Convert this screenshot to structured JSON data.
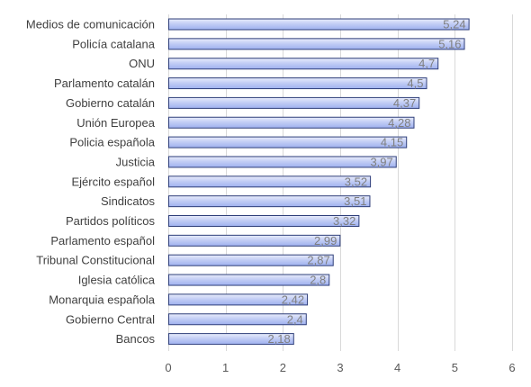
{
  "chart_data": {
    "type": "bar",
    "orientation": "horizontal",
    "categories": [
      "Medios de comunicación",
      "Policía catalana",
      "ONU",
      "Parlamento catalán",
      "Gobierno catalán",
      "Unión Europea",
      "Policia española",
      "Justicia",
      "Ejército español",
      "Sindicatos",
      "Partidos políticos",
      "Parlamento español",
      "Tribunal Constitucional",
      "Iglesia católica",
      "Monarquia española",
      "Gobierno Central",
      "Bancos"
    ],
    "values": [
      5.24,
      5.16,
      4.7,
      4.5,
      4.37,
      4.28,
      4.15,
      3.97,
      3.52,
      3.51,
      3.32,
      2.99,
      2.87,
      2.8,
      2.42,
      2.4,
      2.18
    ],
    "data_labels": [
      "5,24",
      "5,16",
      "4,7",
      "4,5",
      "4,37",
      "4,28",
      "4,15",
      "3,97",
      "3,52",
      "3,51",
      "3,32",
      "2,99",
      "2,87",
      "2,8",
      "2,42",
      "2,4",
      "2,18"
    ],
    "xlim": [
      0,
      6
    ],
    "x_ticks": [
      "0",
      "1",
      "2",
      "3",
      "4",
      "5",
      "6"
    ],
    "grid": true,
    "colors": {
      "bar_fill_top": "#e8ecfb",
      "bar_fill_bottom": "#9fb1ef",
      "bar_stroke": "#2f3f7a"
    }
  }
}
